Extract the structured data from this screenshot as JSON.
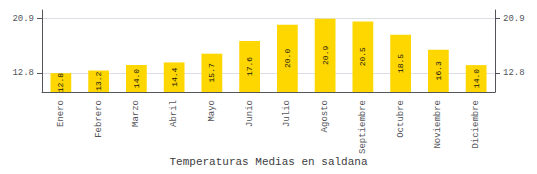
{
  "chart_data": {
    "type": "bar",
    "title": "Temperaturas Medias en saldana",
    "categories": [
      "Enero",
      "Febrero",
      "Marzo",
      "Abril",
      "Mayo",
      "Junio",
      "Julio",
      "Agosto",
      "Septiembre",
      "Octubre",
      "Noviembre",
      "Diciembre"
    ],
    "values": [
      12.8,
      13.2,
      14.0,
      14.4,
      15.7,
      17.6,
      20.0,
      20.9,
      20.5,
      18.5,
      16.3,
      14.0
    ],
    "value_labels": [
      "12.8",
      "13.2",
      "14.0",
      "14.4",
      "15.7",
      "17.6",
      "20.0",
      "20.9",
      "20.5",
      "18.5",
      "16.3",
      "14.0"
    ],
    "data_labels": true,
    "color": "#FFD700",
    "ylim": [
      10.0,
      22.2
    ],
    "yticks": [
      12.8,
      20.9
    ],
    "grid": true
  }
}
